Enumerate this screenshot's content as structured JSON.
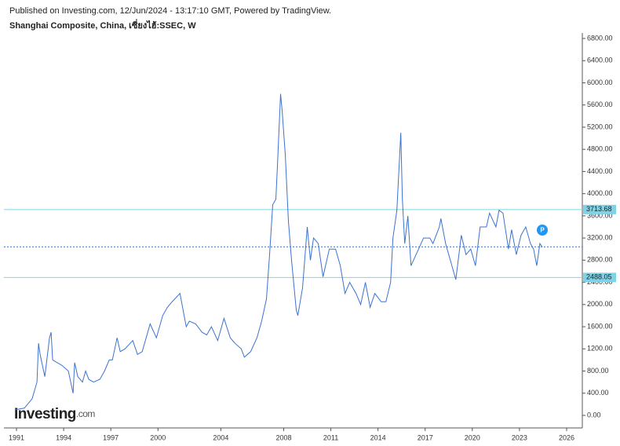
{
  "header": {
    "published": "Published on Investing.com, 12/Jun/2024 - 13:17:10 GMT, Powered by TradingView.",
    "logo_main": "Investing",
    "logo_suffix": ".com"
  },
  "chart_data": {
    "type": "line",
    "title": "Shanghai Composite, China, เซี่ยงไฮ้:SSEC, W",
    "x": [
      1990.9,
      1991.5,
      1992.0,
      1992.3,
      1992.4,
      1992.5,
      1992.8,
      1993.1,
      1993.2,
      1993.3,
      1993.6,
      1993.9,
      1994.3,
      1994.6,
      1994.7,
      1994.9,
      1995.2,
      1995.4,
      1995.6,
      1995.9,
      1996.3,
      1996.6,
      1996.9,
      1997.1,
      1997.4,
      1997.6,
      1997.9,
      1998.4,
      1998.7,
      1999.0,
      1999.5,
      1999.9,
      2000.3,
      2000.6,
      2000.9,
      2001.4,
      2001.6,
      2001.8,
      2002.0,
      2002.4,
      2002.8,
      2003.1,
      2003.4,
      2003.8,
      2004.2,
      2004.6,
      2004.9,
      2005.3,
      2005.5,
      2005.9,
      2006.3,
      2006.6,
      2006.9,
      2007.1,
      2007.3,
      2007.5,
      2007.6,
      2007.8,
      2007.9,
      2008.1,
      2008.3,
      2008.5,
      2008.8,
      2008.9,
      2009.2,
      2009.5,
      2009.7,
      2009.9,
      2010.2,
      2010.5,
      2010.9,
      2011.3,
      2011.6,
      2011.9,
      2012.2,
      2012.6,
      2012.9,
      2013.2,
      2013.5,
      2013.8,
      2014.2,
      2014.5,
      2014.8,
      2014.95,
      2015.2,
      2015.45,
      2015.55,
      2015.7,
      2015.9,
      2016.1,
      2016.5,
      2016.9,
      2017.3,
      2017.5,
      2017.9,
      2018.0,
      2018.3,
      2018.6,
      2018.95,
      2019.3,
      2019.6,
      2019.9,
      2020.2,
      2020.5,
      2020.9,
      2021.1,
      2021.5,
      2021.7,
      2021.95,
      2022.3,
      2022.5,
      2022.8,
      2023.1,
      2023.4,
      2023.7,
      2023.9,
      2024.1,
      2024.3,
      2024.45
    ],
    "series": [
      {
        "color": "#3c72d0",
        "values": [
          100,
          130,
          300,
          600,
          1300,
          1100,
          700,
          1400,
          1500,
          1000,
          950,
          900,
          800,
          400,
          950,
          700,
          600,
          800,
          650,
          600,
          650,
          800,
          1000,
          1000,
          1400,
          1150,
          1200,
          1350,
          1100,
          1150,
          1650,
          1400,
          1800,
          1950,
          2050,
          2200,
          1900,
          1600,
          1700,
          1650,
          1500,
          1450,
          1600,
          1350,
          1750,
          1400,
          1300,
          1200,
          1050,
          1150,
          1400,
          1700,
          2100,
          2900,
          3800,
          3900,
          4500,
          5800,
          5500,
          4700,
          3500,
          2800,
          1900,
          1800,
          2300,
          3400,
          2800,
          3200,
          3100,
          2500,
          3000,
          3000,
          2700,
          2200,
          2400,
          2200,
          2000,
          2400,
          1950,
          2200,
          2050,
          2050,
          2400,
          3200,
          3700,
          5100,
          3900,
          3100,
          3600,
          2700,
          2950,
          3200,
          3200,
          3100,
          3400,
          3550,
          3100,
          2800,
          2450,
          3250,
          2900,
          3000,
          2700,
          3400,
          3400,
          3650,
          3400,
          3700,
          3650,
          3000,
          3350,
          2900,
          3250,
          3400,
          3100,
          3000,
          2700,
          3100,
          3040
        ]
      }
    ],
    "levels": [
      3713.68,
      2488.05
    ],
    "level_color": "#7fd3e6",
    "xlim": [
      1990.2,
      2027.0
    ],
    "xticks": [
      1991,
      1994,
      1997,
      2000,
      2004,
      2008,
      2011,
      2014,
      2017,
      2020,
      2023,
      2026
    ],
    "ylim": [
      0,
      6800
    ],
    "yticks": [
      {
        "value": 0,
        "label": "0.00"
      },
      {
        "value": 400,
        "label": "400.00"
      },
      {
        "value": 800,
        "label": "800.00"
      },
      {
        "value": 1200,
        "label": "1200.00"
      },
      {
        "value": 1600,
        "label": "1600.00"
      },
      {
        "value": 2000,
        "label": "2000.00"
      },
      {
        "value": 2400,
        "label": "2400.00"
      },
      {
        "value": 2800,
        "label": "2800.00"
      },
      {
        "value": 3200,
        "label": "3200.00"
      },
      {
        "value": 3600,
        "label": "3600.00"
      },
      {
        "value": 4000,
        "label": "4000.00"
      },
      {
        "value": 4400,
        "label": "4400.00"
      },
      {
        "value": 4800,
        "label": "4800.00"
      },
      {
        "value": 5200,
        "label": "5200.00"
      },
      {
        "value": 5600,
        "label": "5600.00"
      },
      {
        "value": 6000,
        "label": "6000.00"
      },
      {
        "value": 6400,
        "label": "6400.00"
      },
      {
        "value": 6800,
        "label": "6800.00"
      }
    ]
  }
}
